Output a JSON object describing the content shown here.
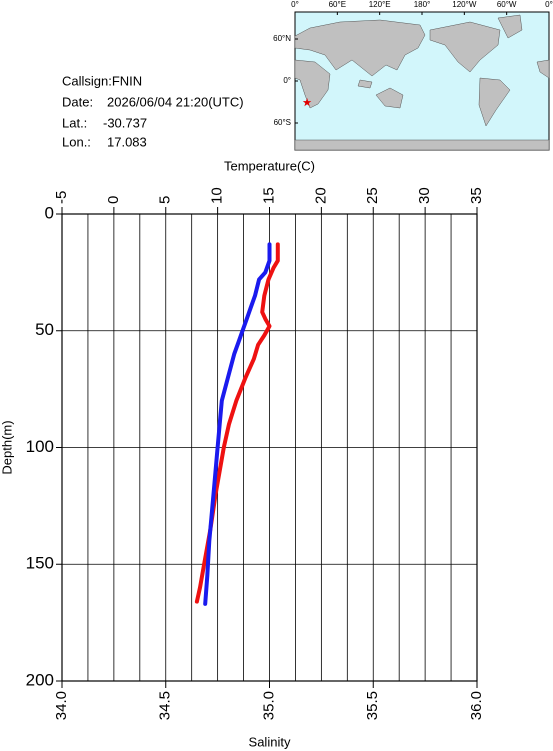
{
  "header": {
    "callsign": "Callsign:FNIN",
    "date_label": "Date:",
    "date": "2026/06/04 21:20(UTC)",
    "lat_label": "Lat.:",
    "lat": -30.737,
    "lon_label": "Lon.:",
    "lon": 17.083
  },
  "map": {
    "lonlim": [
      0,
      360
    ],
    "lon_ticks": [
      {
        "value": 0,
        "label": "0°"
      },
      {
        "value": 60,
        "label": "60°E"
      },
      {
        "value": 120,
        "label": "120°E"
      },
      {
        "value": 180,
        "label": "180°"
      },
      {
        "value": 240,
        "label": "120°W"
      },
      {
        "value": 300,
        "label": "60°W"
      },
      {
        "value": 360,
        "label": "0°"
      }
    ],
    "lat_ticks": [
      {
        "value": 60,
        "label": "60°N"
      },
      {
        "value": 0,
        "label": "0°"
      },
      {
        "value": -60,
        "label": "60°S"
      }
    ],
    "marker_color": "#e00000"
  },
  "chart_data": {
    "type": "line",
    "xlabel": "Temperature(C)",
    "xlim": [
      -5,
      35
    ],
    "xticks": [
      -5,
      0,
      5,
      10,
      15,
      20,
      25,
      30,
      35
    ],
    "xgrid": [
      -2.5,
      0,
      2.5,
      5,
      7.5,
      10,
      12.5,
      15,
      17.5,
      20,
      22.5,
      25,
      27.5,
      30,
      32.5
    ],
    "x2label": "Salinity",
    "x2lim": [
      34.0,
      36.0
    ],
    "x2ticks": [
      {
        "value": 34.0,
        "label": "34.0"
      },
      {
        "value": 34.5,
        "label": "34.5"
      },
      {
        "value": 35.0,
        "label": "35.0"
      },
      {
        "value": 35.5,
        "label": "35.5"
      },
      {
        "value": 36.0,
        "label": "36.0"
      }
    ],
    "ylabel": "Depth(m)",
    "ylim": [
      0,
      200
    ],
    "yticks": [
      0,
      50,
      100,
      150,
      200
    ],
    "grid": true,
    "series": [
      {
        "axis": "x",
        "color": "#ee1111",
        "depth": [
          13,
          20,
          23,
          28,
          35,
          42,
          45,
          48,
          52,
          56,
          62,
          70,
          80,
          90,
          100,
          110,
          120,
          135,
          150,
          160,
          166
        ],
        "values": [
          15.8,
          15.8,
          15.4,
          14.9,
          14.5,
          14.3,
          14.6,
          15.0,
          14.5,
          13.9,
          13.5,
          12.7,
          11.8,
          11.1,
          10.6,
          10.2,
          9.8,
          9.3,
          8.7,
          8.3,
          8.0
        ]
      },
      {
        "axis": "x2",
        "color": "#1a1aee",
        "depth": [
          13,
          20,
          25,
          28,
          35,
          40,
          45,
          50,
          55,
          60,
          70,
          80,
          90,
          100,
          120,
          140,
          155,
          167
        ],
        "values": [
          35.0,
          35.0,
          34.98,
          34.95,
          34.93,
          34.91,
          34.89,
          34.87,
          34.85,
          34.83,
          34.8,
          34.77,
          34.76,
          34.75,
          34.73,
          34.71,
          34.7,
          34.69
        ]
      }
    ]
  }
}
